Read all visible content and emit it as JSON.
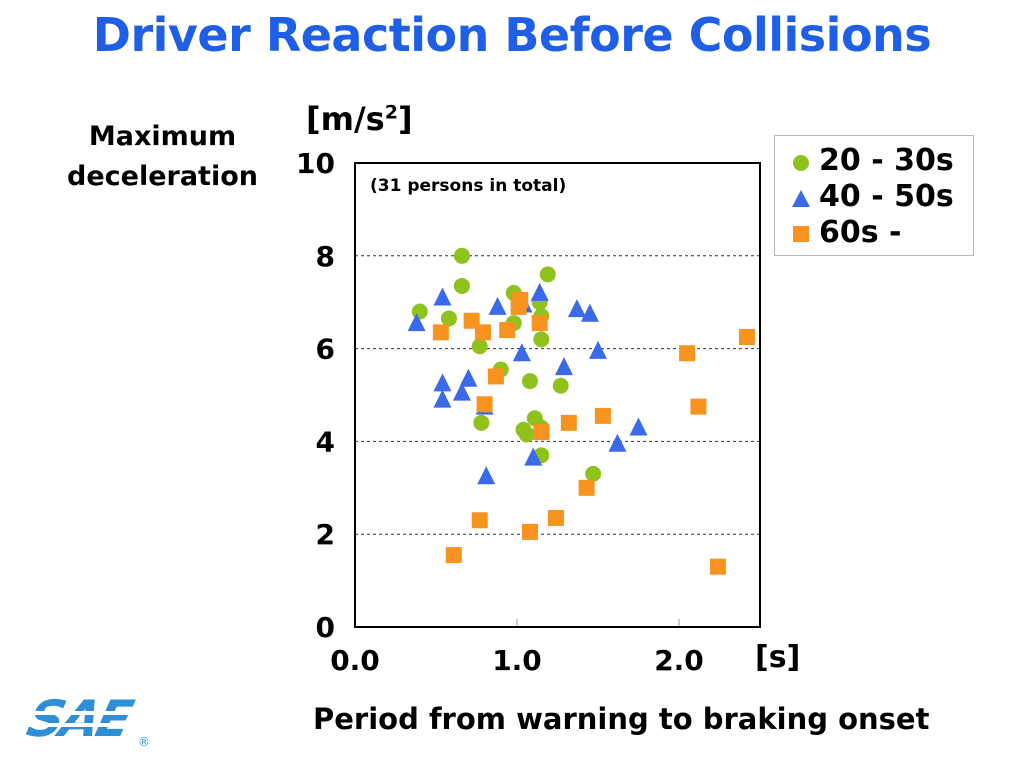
{
  "title": "Driver Reaction Before Collisions",
  "colors": {
    "title": "#1f5fe6",
    "green": "#8fc21d",
    "blue": "#3a69ea",
    "orange": "#f7931e"
  },
  "logo": {
    "text": "SAE",
    "mark": "®"
  },
  "chart_data": {
    "type": "scatter",
    "title": "Driver Reaction Before Collisions",
    "ylabel": "Maximum deceleration",
    "yunit": "[m/s",
    "yunit_sup": "2",
    "yunit_close": "]",
    "xlabel": "Period from warning to braking onset",
    "xunit": "[s]",
    "note": "(31 persons in total)",
    "xlim": [
      0.0,
      2.5
    ],
    "ylim": [
      0,
      10
    ],
    "xticks": [
      "0.0",
      "1.0",
      "2.0"
    ],
    "xtick_values": [
      0.0,
      1.0,
      2.0
    ],
    "yticks": [
      "10",
      "8",
      "6",
      "4",
      "2",
      "0"
    ],
    "ytick_values": [
      10,
      8,
      6,
      4,
      2,
      0
    ],
    "grid": "horizontal dashed",
    "legend_position": "top-right",
    "series": [
      {
        "name": "20 - 30s",
        "marker": "circle",
        "color": "#8fc21d",
        "points": [
          [
            0.4,
            6.8
          ],
          [
            0.58,
            6.65
          ],
          [
            0.66,
            8.0
          ],
          [
            0.66,
            7.35
          ],
          [
            0.77,
            6.05
          ],
          [
            0.78,
            4.4
          ],
          [
            0.9,
            5.55
          ],
          [
            0.98,
            6.55
          ],
          [
            0.98,
            7.2
          ],
          [
            1.04,
            4.25
          ],
          [
            1.06,
            4.15
          ],
          [
            1.08,
            5.3
          ],
          [
            1.11,
            4.5
          ],
          [
            1.14,
            7.0
          ],
          [
            1.15,
            6.2
          ],
          [
            1.15,
            6.7
          ],
          [
            1.15,
            4.3
          ],
          [
            1.15,
            3.7
          ],
          [
            1.19,
            7.6
          ],
          [
            1.27,
            5.2
          ],
          [
            1.47,
            3.3
          ]
        ]
      },
      {
        "name": "40 - 50s",
        "marker": "triangle",
        "color": "#3a69ea",
        "points": [
          [
            0.38,
            6.55
          ],
          [
            0.54,
            7.1
          ],
          [
            0.54,
            5.25
          ],
          [
            0.54,
            4.9
          ],
          [
            0.66,
            5.05
          ],
          [
            0.7,
            5.35
          ],
          [
            0.8,
            4.75
          ],
          [
            0.81,
            3.25
          ],
          [
            0.88,
            6.9
          ],
          [
            1.03,
            5.9
          ],
          [
            1.04,
            6.95
          ],
          [
            1.1,
            3.65
          ],
          [
            1.14,
            7.2
          ],
          [
            1.29,
            5.6
          ],
          [
            1.37,
            6.85
          ],
          [
            1.45,
            6.75
          ],
          [
            1.5,
            5.95
          ],
          [
            1.62,
            3.95
          ],
          [
            1.75,
            4.3
          ]
        ]
      },
      {
        "name": "60s -",
        "marker": "square",
        "color": "#f7931e",
        "points": [
          [
            0.53,
            6.35
          ],
          [
            0.61,
            1.55
          ],
          [
            0.72,
            6.6
          ],
          [
            0.77,
            2.3
          ],
          [
            0.79,
            6.35
          ],
          [
            0.8,
            4.8
          ],
          [
            0.87,
            5.4
          ],
          [
            0.94,
            6.4
          ],
          [
            1.01,
            6.9
          ],
          [
            1.02,
            7.05
          ],
          [
            1.08,
            2.05
          ],
          [
            1.14,
            6.55
          ],
          [
            1.15,
            4.2
          ],
          [
            1.24,
            2.35
          ],
          [
            1.32,
            4.4
          ],
          [
            1.43,
            3.0
          ],
          [
            1.53,
            4.55
          ],
          [
            2.05,
            5.9
          ],
          [
            2.12,
            4.75
          ],
          [
            2.24,
            1.3
          ],
          [
            2.42,
            6.25
          ]
        ]
      }
    ]
  }
}
